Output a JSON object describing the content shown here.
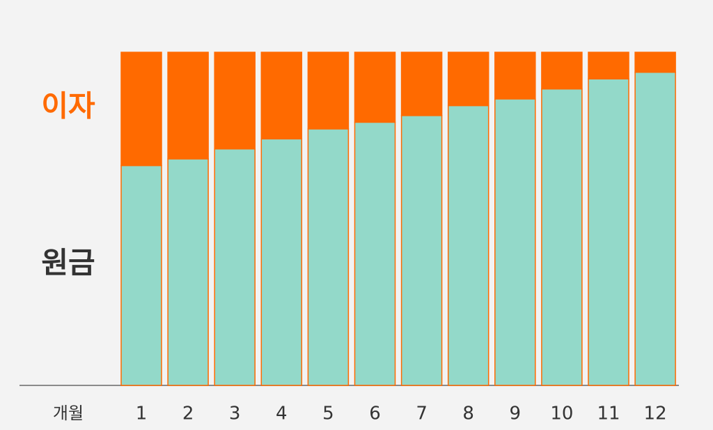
{
  "chart_data": {
    "type": "stacked-bar",
    "x_label": "개월",
    "categories": [
      "1",
      "2",
      "3",
      "4",
      "5",
      "6",
      "7",
      "8",
      "9",
      "10",
      "11",
      "12"
    ],
    "series": [
      {
        "name": "원금",
        "color": "#93d9c9",
        "values": [
          66,
          68,
          71,
          74,
          77,
          79,
          81,
          84,
          86,
          89,
          92,
          94
        ]
      },
      {
        "name": "이자",
        "color": "#ff6a00",
        "values": [
          34,
          32,
          29,
          26,
          23,
          21,
          19,
          16,
          14,
          11,
          8,
          6
        ]
      }
    ],
    "ylim": [
      0,
      100
    ]
  }
}
